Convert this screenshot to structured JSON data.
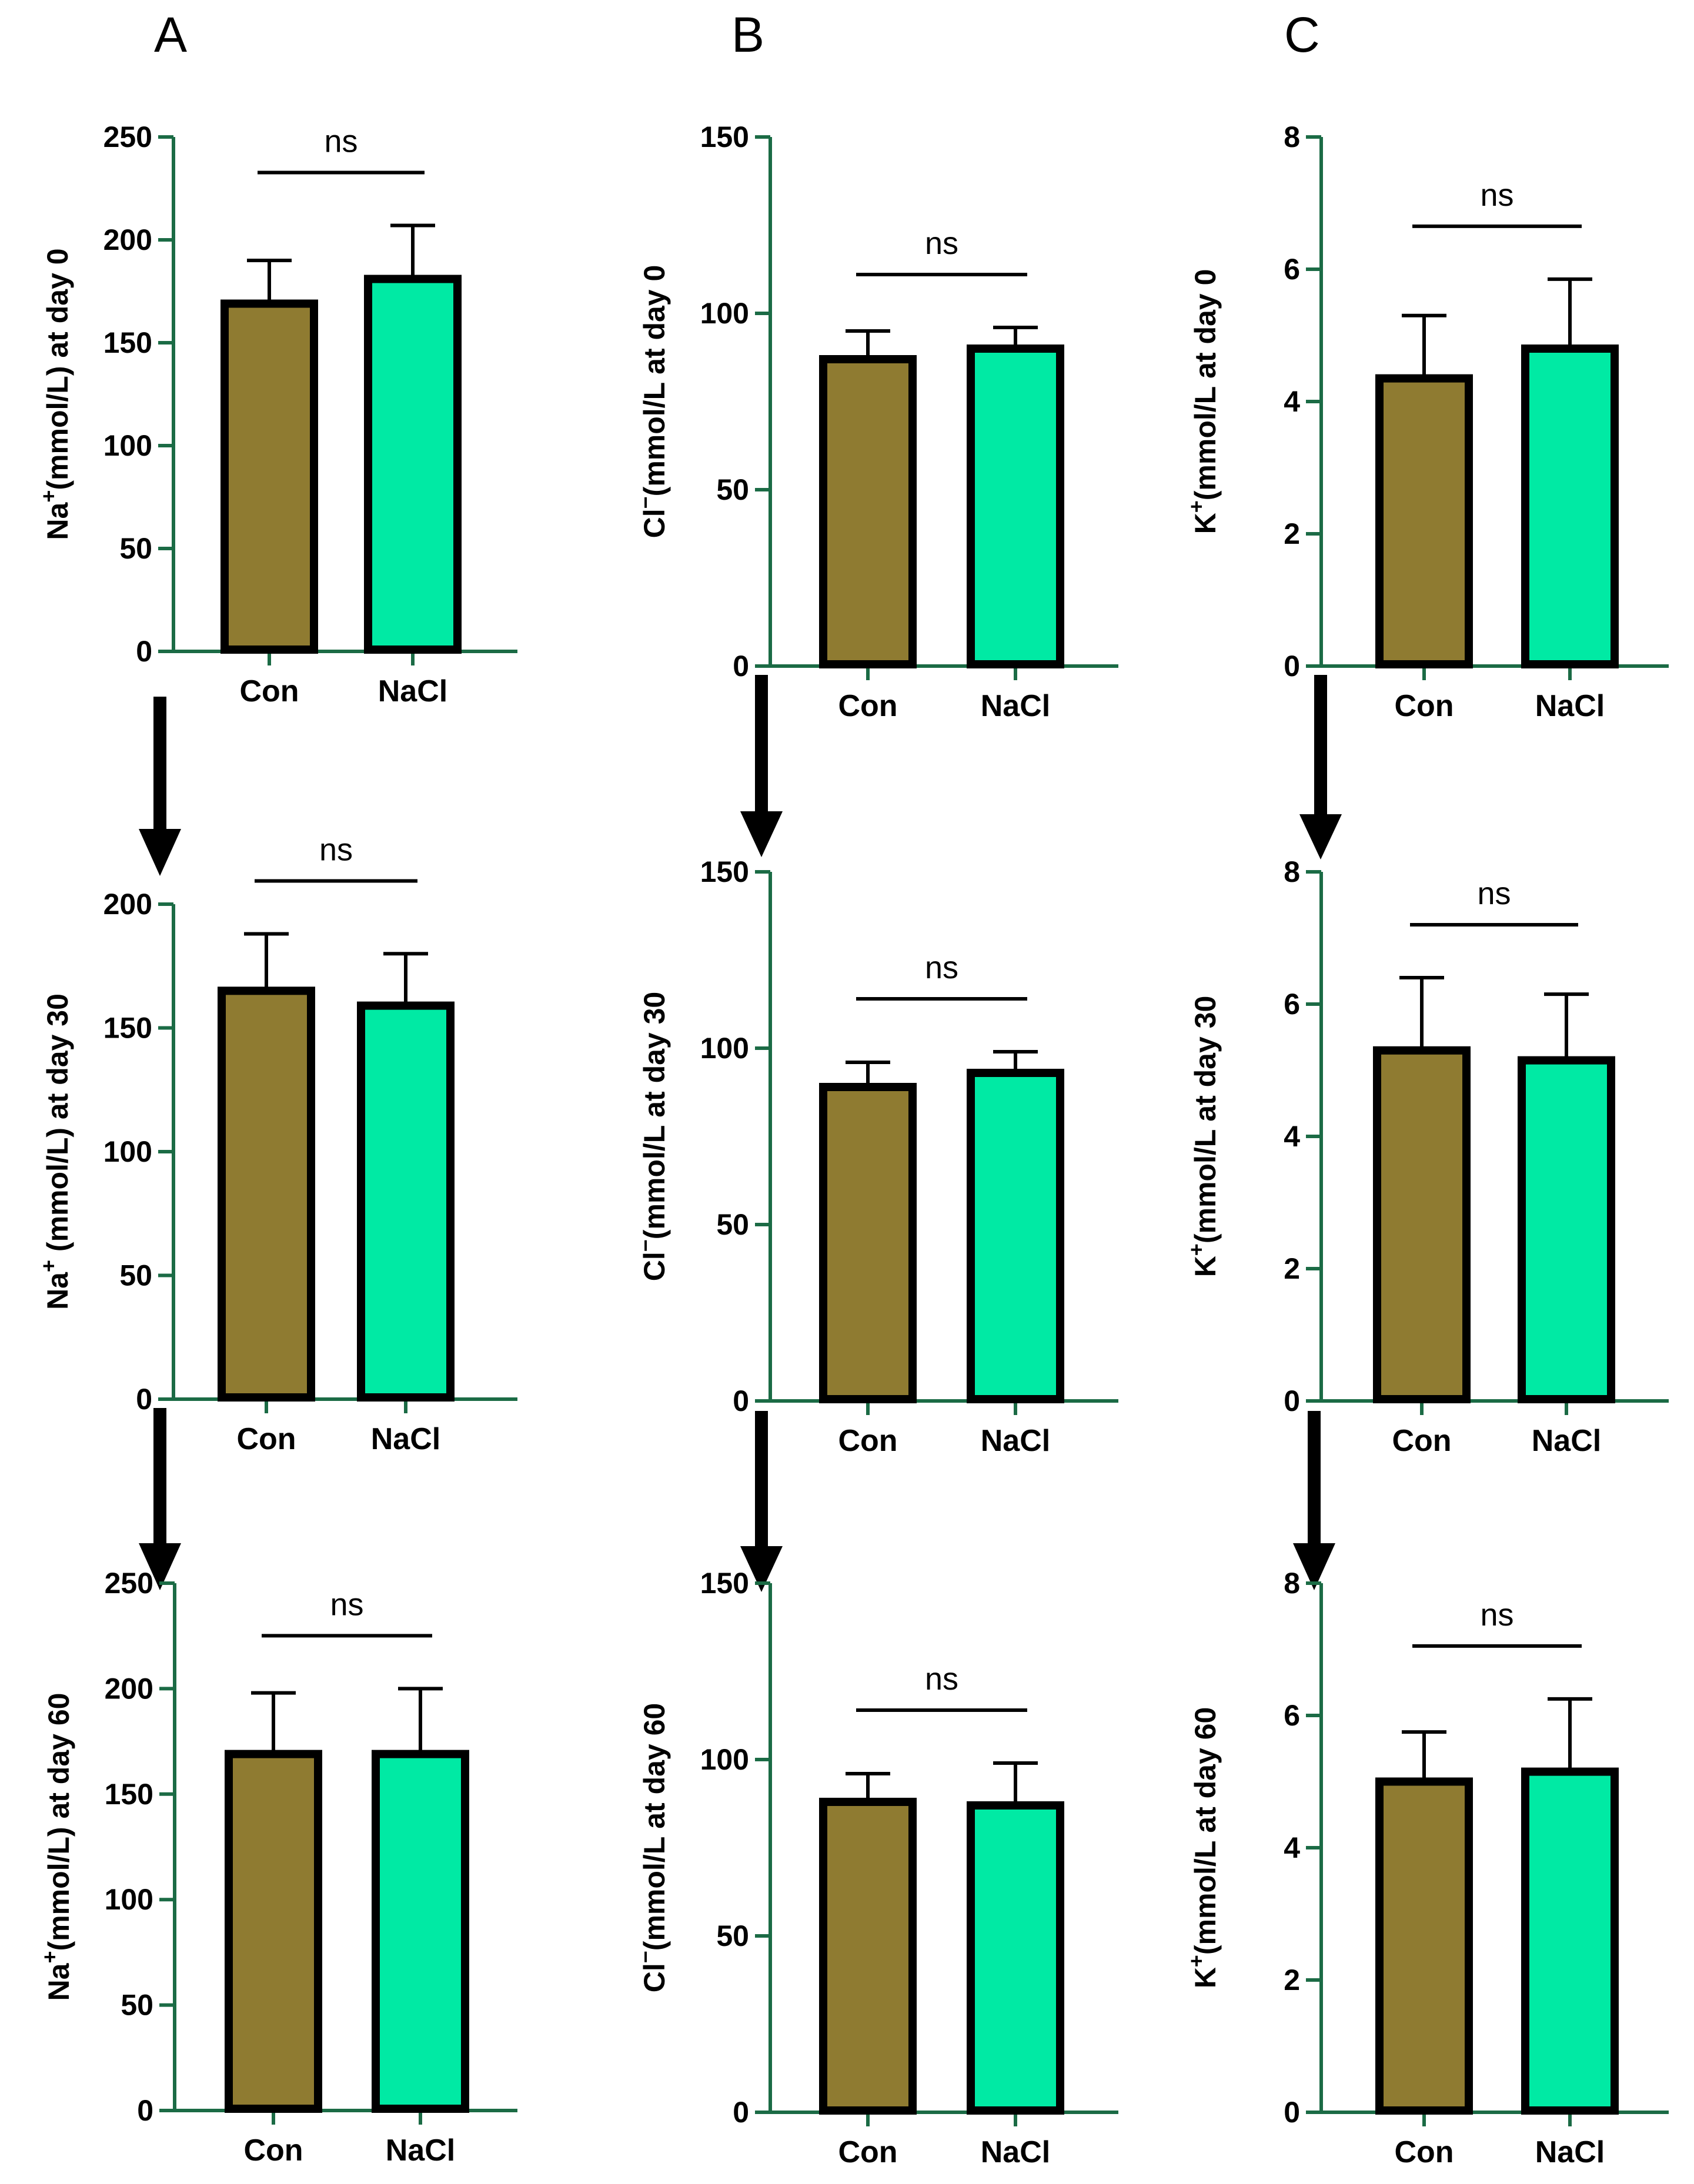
{
  "panel_letters": [
    "A",
    "B",
    "C"
  ],
  "colors": {
    "axis": "#1b6b45",
    "con": "#8f7b31",
    "nacl": "#00eaa4",
    "outline": "#000000"
  },
  "chart_data": [
    {
      "id": "na0",
      "type": "bar",
      "title": "",
      "ylabel_pre": "Na",
      "ylabel_sup": "+",
      "ylabel_post": "(mmol/L) at day 0",
      "categories": [
        "Con",
        "NaCl"
      ],
      "values": [
        169,
        181
      ],
      "errors": [
        21,
        26
      ],
      "ylim": [
        0,
        250
      ],
      "yticks": [
        0,
        50,
        100,
        150,
        200,
        250
      ],
      "annotation": "ns"
    },
    {
      "id": "cl0",
      "type": "bar",
      "title": "",
      "ylabel_pre": "Cl",
      "ylabel_sup": "−",
      "ylabel_post": "(mmol/L at day 0",
      "categories": [
        "Con",
        "NaCl"
      ],
      "values": [
        87,
        90
      ],
      "errors": [
        8,
        6
      ],
      "ylim": [
        0,
        150
      ],
      "yticks": [
        0,
        50,
        100,
        150
      ],
      "annotation": "ns"
    },
    {
      "id": "k0",
      "type": "bar",
      "title": "",
      "ylabel_pre": "K",
      "ylabel_sup": "+",
      "ylabel_post": "(mmol/L at day 0",
      "categories": [
        "Con",
        "NaCl"
      ],
      "values": [
        4.35,
        4.8
      ],
      "errors": [
        0.95,
        1.05
      ],
      "ylim": [
        0,
        8
      ],
      "yticks": [
        0,
        2,
        4,
        6,
        8
      ],
      "annotation": "ns"
    },
    {
      "id": "na30",
      "type": "bar",
      "title": "",
      "ylabel_pre": "Na",
      "ylabel_sup": "+",
      "ylabel_post": " (mmol/L) at day 30",
      "categories": [
        "Con",
        "NaCl"
      ],
      "values": [
        165,
        159
      ],
      "errors": [
        23,
        21
      ],
      "ylim": [
        0,
        200
      ],
      "yticks": [
        0,
        50,
        100,
        150,
        200
      ],
      "annotation": "ns"
    },
    {
      "id": "cl30",
      "type": "bar",
      "title": "",
      "ylabel_pre": "Cl",
      "ylabel_sup": "−",
      "ylabel_post": "(mmol/L at day 30",
      "categories": [
        "Con",
        "NaCl"
      ],
      "values": [
        89,
        93
      ],
      "errors": [
        7,
        6
      ],
      "ylim": [
        0,
        150
      ],
      "yticks": [
        0,
        50,
        100,
        150
      ],
      "annotation": "ns"
    },
    {
      "id": "k30",
      "type": "bar",
      "title": "",
      "ylabel_pre": "K",
      "ylabel_sup": "+",
      "ylabel_post": "(mmol/L at day 30",
      "categories": [
        "Con",
        "NaCl"
      ],
      "values": [
        5.3,
        5.15
      ],
      "errors": [
        1.1,
        1.0
      ],
      "ylim": [
        0,
        8
      ],
      "yticks": [
        0,
        2,
        4,
        6,
        8
      ],
      "annotation": "ns"
    },
    {
      "id": "na60",
      "type": "bar",
      "title": "",
      "ylabel_pre": "Na",
      "ylabel_sup": "+",
      "ylabel_post": "(mmol/L) at day 60",
      "categories": [
        "Con",
        "NaCl"
      ],
      "values": [
        169,
        169
      ],
      "errors": [
        29,
        31
      ],
      "ylim": [
        0,
        250
      ],
      "yticks": [
        0,
        50,
        100,
        150,
        200,
        250
      ],
      "annotation": "ns"
    },
    {
      "id": "cl60",
      "type": "bar",
      "title": "",
      "ylabel_pre": "Cl",
      "ylabel_sup": "−",
      "ylabel_post": "(mmol/L at day 60",
      "categories": [
        "Con",
        "NaCl"
      ],
      "values": [
        88,
        87
      ],
      "errors": [
        8,
        12
      ],
      "ylim": [
        0,
        150
      ],
      "yticks": [
        0,
        50,
        100,
        150
      ],
      "annotation": "ns"
    },
    {
      "id": "k60",
      "type": "bar",
      "title": "",
      "ylabel_pre": "K",
      "ylabel_sup": "+",
      "ylabel_post": "(mmol/L at day 60",
      "categories": [
        "Con",
        "NaCl"
      ],
      "values": [
        5.0,
        5.15
      ],
      "errors": [
        0.75,
        1.1
      ],
      "ylim": [
        0,
        8
      ],
      "yticks": [
        0,
        2,
        4,
        6,
        8
      ],
      "annotation": "ns"
    }
  ]
}
